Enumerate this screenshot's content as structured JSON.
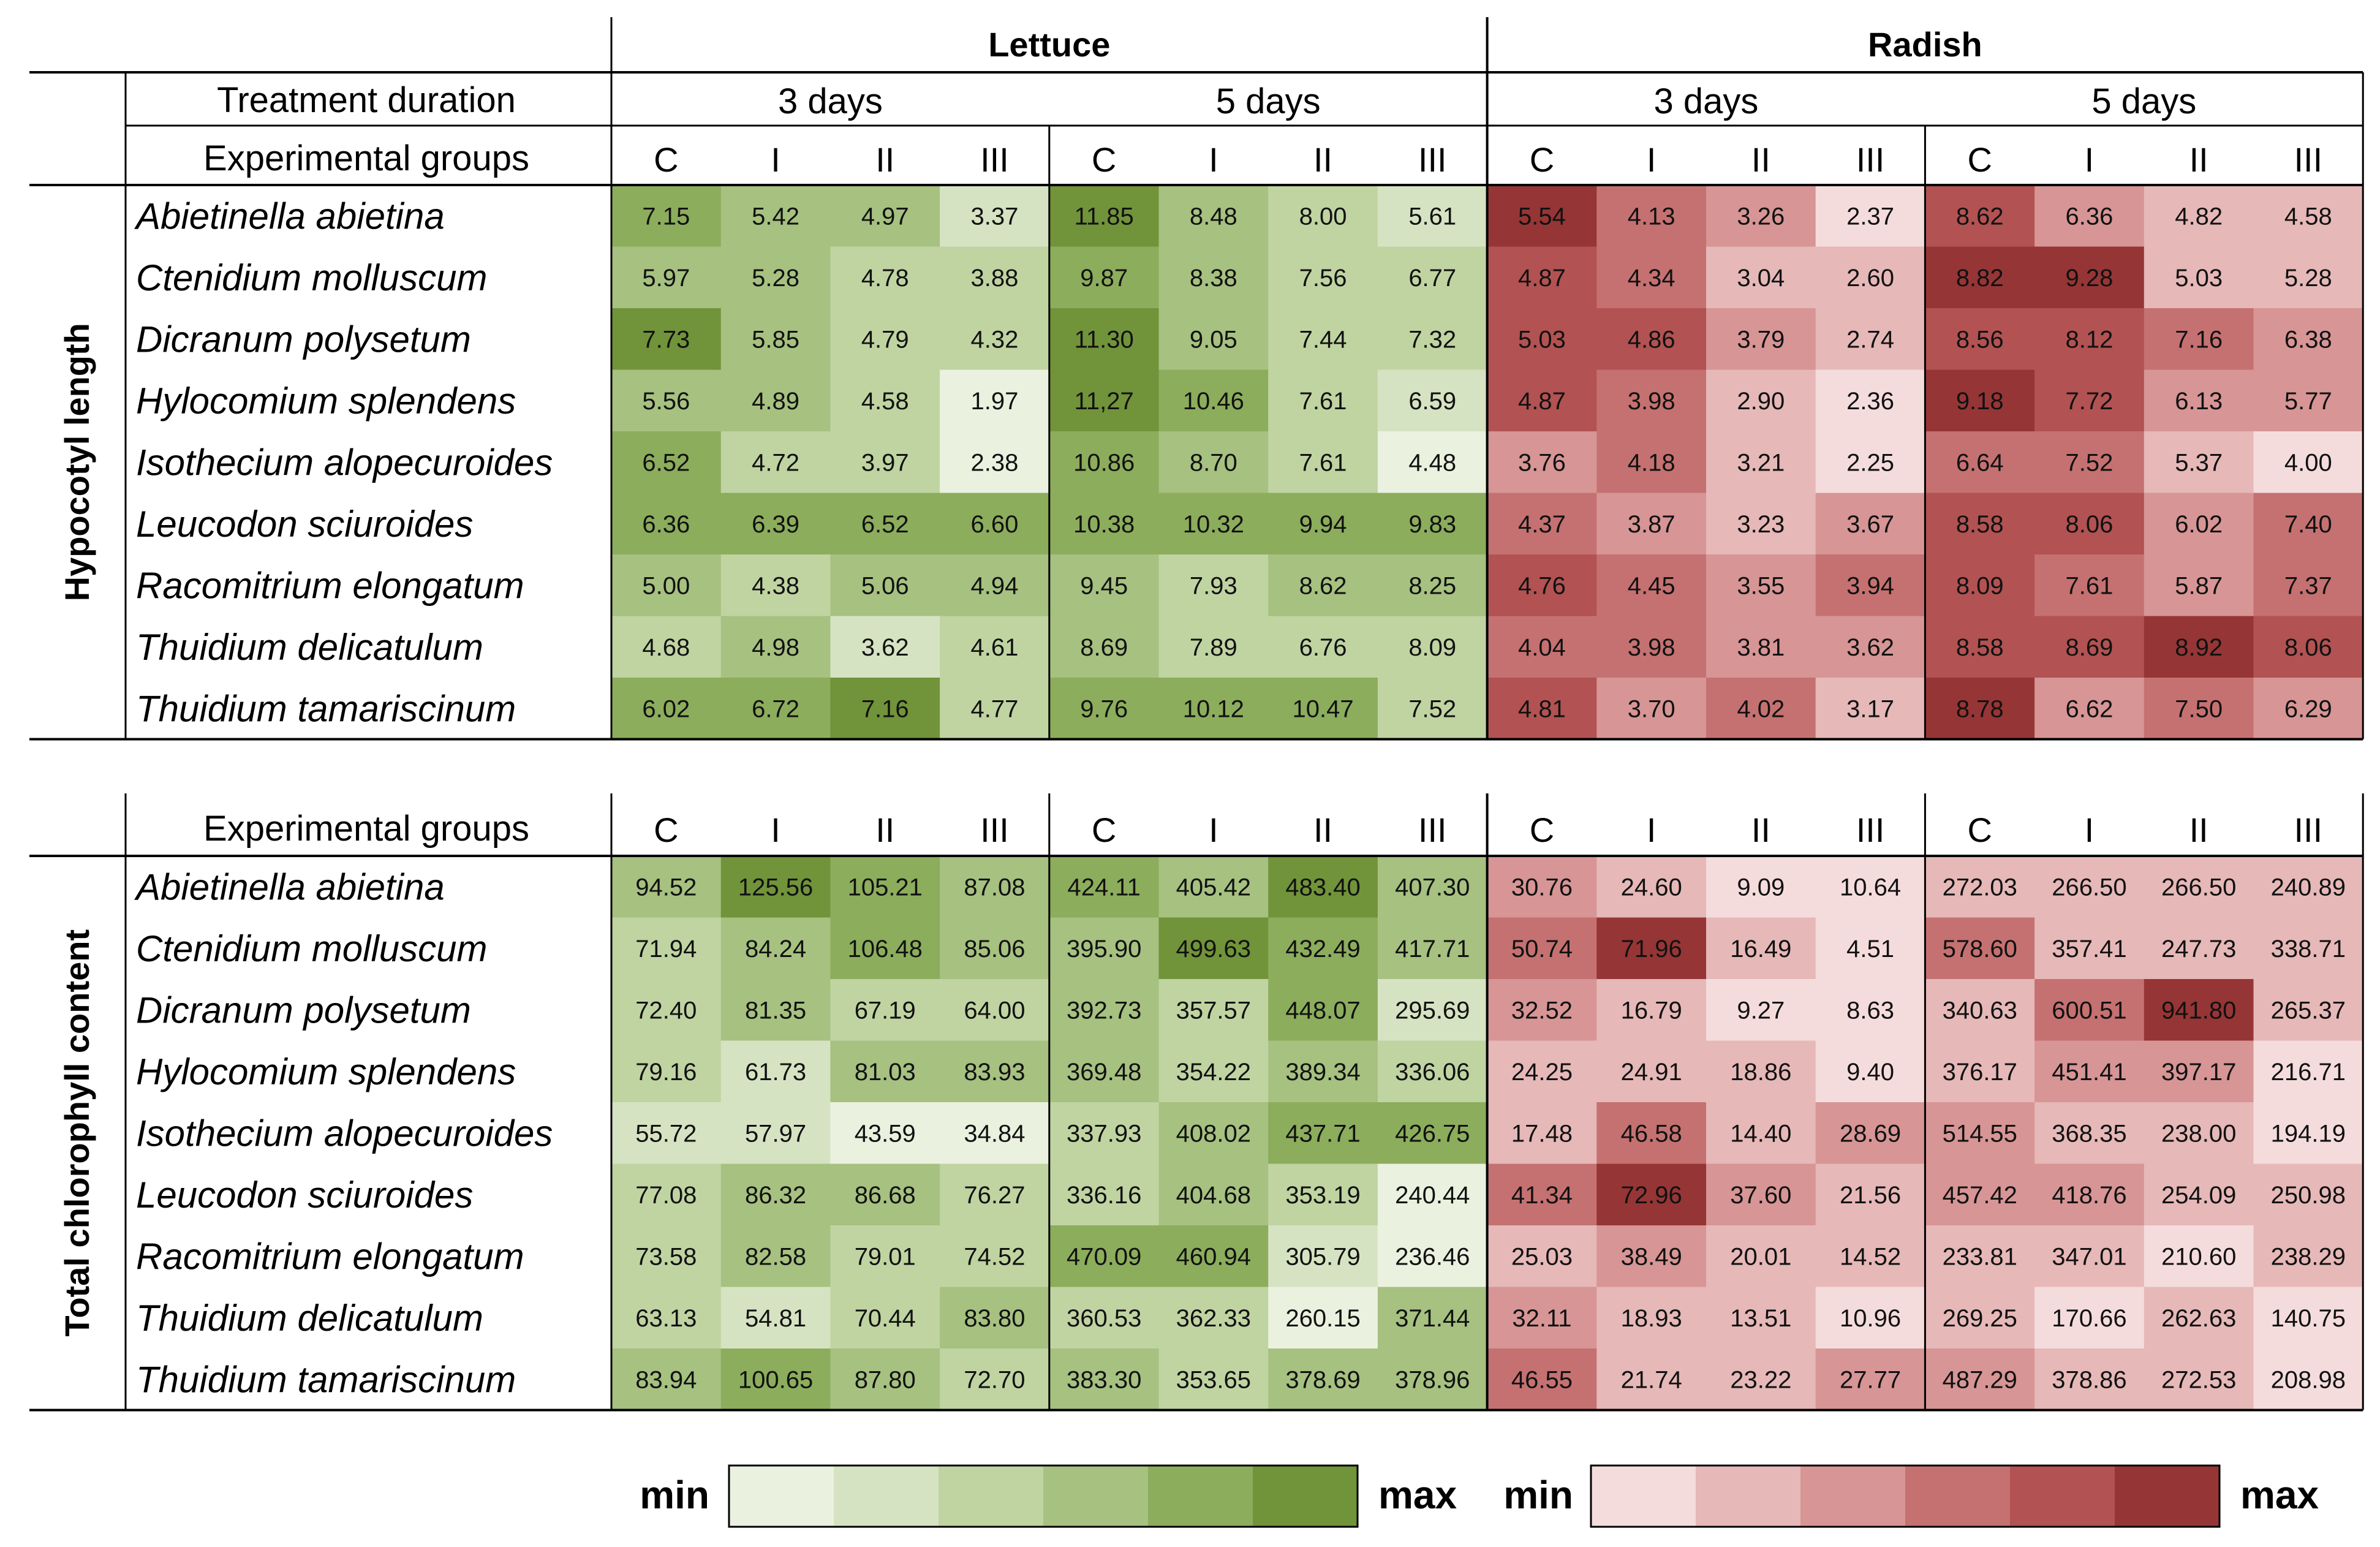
{
  "chart_data": {
    "type": "heatmap",
    "crops": [
      "Lettuce",
      "Radish"
    ],
    "durations": [
      "3 days",
      "5 days"
    ],
    "groups": [
      "C",
      "I",
      "II",
      "III"
    ],
    "species": [
      "Abietinella abietina",
      "Ctenidium molluscum",
      "Dicranum polysetum",
      "Hylocomium splendens",
      "Isothecium alopecuroides",
      "Leucodon sciuroides",
      "Racomitrium elongatum",
      "Thuidium delicatulum",
      "Thuidium tamariscinum"
    ],
    "tables": [
      {
        "label": "Hypocotyl length",
        "duration_label": "Treatment duration",
        "groups_label": "Experimental groups",
        "rows": [
          [
            "7.15",
            "5.42",
            "4.97",
            "3.37",
            "11.85",
            "8.48",
            "8.00",
            "5.61",
            "5.54",
            "4.13",
            "3.26",
            "2.37",
            "8.62",
            "6.36",
            "4.82",
            "4.58"
          ],
          [
            "5.97",
            "5.28",
            "4.78",
            "3.88",
            "9.87",
            "8.38",
            "7.56",
            "6.77",
            "4.87",
            "4.34",
            "3.04",
            "2.60",
            "8.82",
            "9.28",
            "5.03",
            "5.28"
          ],
          [
            "7.73",
            "5.85",
            "4.79",
            "4.32",
            "11.30",
            "9.05",
            "7.44",
            "7.32",
            "5.03",
            "4.86",
            "3.79",
            "2.74",
            "8.56",
            "8.12",
            "7.16",
            "6.38"
          ],
          [
            "5.56",
            "4.89",
            "4.58",
            "1.97",
            "11,27",
            "10.46",
            "7.61",
            "6.59",
            "4.87",
            "3.98",
            "2.90",
            "2.36",
            "9.18",
            "7.72",
            "6.13",
            "5.77"
          ],
          [
            "6.52",
            "4.72",
            "3.97",
            "2.38",
            "10.86",
            "8.70",
            "7.61",
            "4.48",
            "3.76",
            "4.18",
            "3.21",
            "2.25",
            "6.64",
            "7.52",
            "5.37",
            "4.00"
          ],
          [
            "6.36",
            "6.39",
            "6.52",
            "6.60",
            "10.38",
            "10.32",
            "9.94",
            "9.83",
            "4.37",
            "3.87",
            "3.23",
            "3.67",
            "8.58",
            "8.06",
            "6.02",
            "7.40"
          ],
          [
            "5.00",
            "4.38",
            "5.06",
            "4.94",
            "9.45",
            "7.93",
            "8.62",
            "8.25",
            "4.76",
            "4.45",
            "3.55",
            "3.94",
            "8.09",
            "7.61",
            "5.87",
            "7.37"
          ],
          [
            "4.68",
            "4.98",
            "3.62",
            "4.61",
            "8.69",
            "7.89",
            "6.76",
            "8.09",
            "4.04",
            "3.98",
            "3.81",
            "3.62",
            "8.58",
            "8.69",
            "8.92",
            "8.06"
          ],
          [
            "6.02",
            "6.72",
            "7.16",
            "4.77",
            "9.76",
            "10.12",
            "10.47",
            "7.52",
            "4.81",
            "3.70",
            "4.02",
            "3.17",
            "8.78",
            "6.62",
            "7.50",
            "6.29"
          ]
        ]
      },
      {
        "label": "Total chlorophyll content",
        "duration_label": "",
        "groups_label": "Experimental groups",
        "rows": [
          [
            "94.52",
            "125.56",
            "105.21",
            "87.08",
            "424.11",
            "405.42",
            "483.40",
            "407.30",
            "30.76",
            "24.60",
            "9.09",
            "10.64",
            "272.03",
            "266.50",
            "266.50",
            "240.89"
          ],
          [
            "71.94",
            "84.24",
            "106.48",
            "85.06",
            "395.90",
            "499.63",
            "432.49",
            "417.71",
            "50.74",
            "71.96",
            "16.49",
            "4.51",
            "578.60",
            "357.41",
            "247.73",
            "338.71"
          ],
          [
            "72.40",
            "81.35",
            "67.19",
            "64.00",
            "392.73",
            "357.57",
            "448.07",
            "295.69",
            "32.52",
            "16.79",
            "9.27",
            "8.63",
            "340.63",
            "600.51",
            "941.80",
            "265.37"
          ],
          [
            "79.16",
            "61.73",
            "81.03",
            "83.93",
            "369.48",
            "354.22",
            "389.34",
            "336.06",
            "24.25",
            "24.91",
            "18.86",
            "9.40",
            "376.17",
            "451.41",
            "397.17",
            "216.71"
          ],
          [
            "55.72",
            "57.97",
            "43.59",
            "34.84",
            "337.93",
            "408.02",
            "437.71",
            "426.75",
            "17.48",
            "46.58",
            "14.40",
            "28.69",
            "514.55",
            "368.35",
            "238.00",
            "194.19"
          ],
          [
            "77.08",
            "86.32",
            "86.68",
            "76.27",
            "336.16",
            "404.68",
            "353.19",
            "240.44",
            "41.34",
            "72.96",
            "37.60",
            "21.56",
            "457.42",
            "418.76",
            "254.09",
            "250.98"
          ],
          [
            "73.58",
            "82.58",
            "79.01",
            "74.52",
            "470.09",
            "460.94",
            "305.79",
            "236.46",
            "25.03",
            "38.49",
            "20.01",
            "14.52",
            "233.81",
            "347.01",
            "210.60",
            "238.29"
          ],
          [
            "63.13",
            "54.81",
            "70.44",
            "83.80",
            "360.53",
            "362.33",
            "260.15",
            "371.44",
            "32.11",
            "18.93",
            "13.51",
            "10.96",
            "269.25",
            "170.66",
            "262.63",
            "140.75"
          ],
          [
            "83.94",
            "100.65",
            "87.80",
            "72.70",
            "383.30",
            "353.65",
            "378.69",
            "378.96",
            "46.55",
            "21.74",
            "23.22",
            "27.77",
            "487.29",
            "378.86",
            "272.53",
            "208.98"
          ]
        ]
      }
    ],
    "legend": {
      "min_label": "min",
      "max_label": "max",
      "lettuce_colors": [
        "#ebf1df",
        "#d6e3c2",
        "#c0d4a2",
        "#a6c180",
        "#8cad5c",
        "#71933a"
      ],
      "radish_colors": [
        "#f5dcdc",
        "#e6b8b8",
        "#d79595",
        "#c57171",
        "#b25252",
        "#963535"
      ]
    }
  }
}
